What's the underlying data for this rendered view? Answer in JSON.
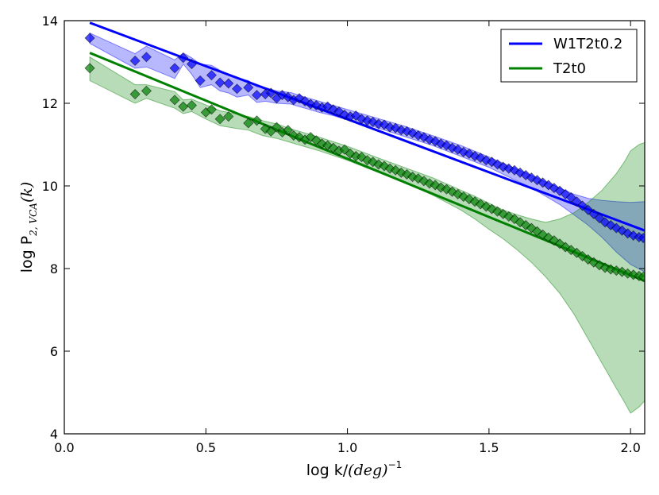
{
  "chart_data": {
    "type": "scatter",
    "title": "",
    "xlabel": "log k/",
    "xlabel_math": "(deg)",
    "xlabel_exp": "−1",
    "ylabel": "log P",
    "ylabel_sub": "2, VCA",
    "ylabel_tail": "(k)",
    "xlim": [
      0.0,
      2.05
    ],
    "ylim": [
      4,
      14
    ],
    "xticks": [
      0.0,
      0.5,
      1.0,
      1.5,
      2.0
    ],
    "xtick_labels": [
      "0.0",
      "0.5",
      "1.0",
      "1.5",
      "2.0"
    ],
    "yticks": [
      4,
      6,
      8,
      10,
      12,
      14
    ],
    "ytick_labels": [
      "4",
      "6",
      "8",
      "10",
      "12",
      "14"
    ],
    "grid": false,
    "legend_position": "top-right",
    "series": [
      {
        "name": "W1T2t0.2",
        "color": "#0000ff",
        "fill": "#0000ff",
        "fit": {
          "x": [
            0.09,
            2.05
          ],
          "y": [
            13.95,
            8.92
          ]
        },
        "points": {
          "x": [
            0.09,
            0.25,
            0.29,
            0.39,
            0.42,
            0.45,
            0.48,
            0.52,
            0.55,
            0.58,
            0.61,
            0.65,
            0.68,
            0.71,
            0.73,
            0.75,
            0.77,
            0.79,
            0.81,
            0.83,
            0.85,
            0.87,
            0.89,
            0.91,
            0.93,
            0.95,
            0.97,
            0.99,
            1.01,
            1.03,
            1.05,
            1.07,
            1.09,
            1.11,
            1.13,
            1.15,
            1.17,
            1.19,
            1.21,
            1.23,
            1.25,
            1.27,
            1.29,
            1.31,
            1.33,
            1.35,
            1.37,
            1.39,
            1.41,
            1.43,
            1.45,
            1.47,
            1.49,
            1.51,
            1.53,
            1.55,
            1.57,
            1.59,
            1.61,
            1.63,
            1.65,
            1.67,
            1.69,
            1.71,
            1.73,
            1.75,
            1.77,
            1.79,
            1.81,
            1.83,
            1.85,
            1.87,
            1.89,
            1.91,
            1.93,
            1.95,
            1.97,
            1.99,
            2.01,
            2.03,
            2.045
          ],
          "y": [
            13.58,
            13.03,
            13.12,
            12.85,
            13.1,
            12.95,
            12.55,
            12.68,
            12.5,
            12.48,
            12.35,
            12.38,
            12.2,
            12.22,
            12.25,
            12.12,
            12.2,
            12.15,
            12.08,
            12.12,
            12.05,
            11.98,
            11.95,
            11.9,
            11.92,
            11.85,
            11.8,
            11.72,
            11.68,
            11.7,
            11.62,
            11.58,
            11.55,
            11.5,
            11.48,
            11.42,
            11.4,
            11.35,
            11.32,
            11.28,
            11.22,
            11.18,
            11.12,
            11.08,
            11.02,
            10.98,
            10.92,
            10.88,
            10.82,
            10.78,
            10.72,
            10.68,
            10.62,
            10.58,
            10.52,
            10.46,
            10.42,
            10.38,
            10.32,
            10.26,
            10.2,
            10.14,
            10.08,
            10.02,
            9.95,
            9.88,
            9.8,
            9.72,
            9.62,
            9.52,
            9.42,
            9.32,
            9.22,
            9.12,
            9.05,
            8.98,
            8.92,
            8.85,
            8.8,
            8.76,
            8.74
          ]
        },
        "band": {
          "x": [
            0.09,
            0.25,
            0.29,
            0.39,
            0.42,
            0.45,
            0.48,
            0.52,
            0.55,
            0.58,
            0.61,
            0.65,
            0.68,
            0.71,
            0.75,
            0.8,
            0.85,
            0.9,
            0.95,
            1.0,
            1.1,
            1.2,
            1.3,
            1.4,
            1.5,
            1.55,
            1.6,
            1.65,
            1.7,
            1.75,
            1.8,
            1.85,
            1.9,
            1.95,
            2.0,
            2.05
          ],
          "upper": [
            13.7,
            13.2,
            13.38,
            13.05,
            13.22,
            13.1,
            12.95,
            12.92,
            12.8,
            12.7,
            12.6,
            12.55,
            12.4,
            12.38,
            12.3,
            12.26,
            12.15,
            12.05,
            11.95,
            11.85,
            11.65,
            11.45,
            11.22,
            10.98,
            10.7,
            10.55,
            10.4,
            10.25,
            10.1,
            9.95,
            9.8,
            9.7,
            9.65,
            9.62,
            9.6,
            9.62
          ],
          "lower": [
            13.45,
            12.85,
            12.88,
            12.6,
            12.95,
            12.7,
            12.38,
            12.45,
            12.3,
            12.25,
            12.15,
            12.2,
            12.02,
            12.05,
            12.0,
            11.98,
            11.88,
            11.78,
            11.7,
            11.6,
            11.42,
            11.2,
            10.98,
            10.72,
            10.45,
            10.28,
            10.12,
            9.95,
            9.75,
            9.55,
            9.3,
            9.05,
            8.75,
            8.4,
            8.1,
            7.92
          ]
        }
      },
      {
        "name": "T2t0",
        "color": "#008000",
        "fill": "#008000",
        "fit": {
          "x": [
            0.09,
            2.05
          ],
          "y": [
            13.22,
            7.7
          ]
        },
        "points": {
          "x": [
            0.09,
            0.25,
            0.29,
            0.39,
            0.42,
            0.45,
            0.5,
            0.52,
            0.55,
            0.58,
            0.65,
            0.68,
            0.71,
            0.73,
            0.75,
            0.77,
            0.79,
            0.81,
            0.83,
            0.85,
            0.87,
            0.89,
            0.91,
            0.93,
            0.95,
            0.97,
            0.99,
            1.01,
            1.03,
            1.05,
            1.07,
            1.09,
            1.11,
            1.13,
            1.15,
            1.17,
            1.19,
            1.21,
            1.23,
            1.25,
            1.27,
            1.29,
            1.31,
            1.33,
            1.35,
            1.37,
            1.39,
            1.41,
            1.43,
            1.45,
            1.47,
            1.49,
            1.51,
            1.53,
            1.55,
            1.57,
            1.59,
            1.61,
            1.63,
            1.65,
            1.67,
            1.69,
            1.71,
            1.73,
            1.75,
            1.77,
            1.79,
            1.81,
            1.83,
            1.85,
            1.87,
            1.89,
            1.91,
            1.93,
            1.95,
            1.97,
            1.99,
            2.01,
            2.03,
            2.045
          ],
          "y": [
            12.85,
            12.22,
            12.3,
            12.08,
            11.92,
            11.95,
            11.78,
            11.85,
            11.62,
            11.68,
            11.52,
            11.58,
            11.38,
            11.32,
            11.42,
            11.3,
            11.35,
            11.22,
            11.18,
            11.12,
            11.18,
            11.1,
            11.02,
            10.98,
            10.92,
            10.85,
            10.88,
            10.78,
            10.72,
            10.7,
            10.62,
            10.58,
            10.52,
            10.48,
            10.42,
            10.38,
            10.32,
            10.28,
            10.22,
            10.18,
            10.12,
            10.06,
            10.02,
            9.96,
            9.92,
            9.86,
            9.8,
            9.74,
            9.68,
            9.62,
            9.56,
            9.5,
            9.44,
            9.38,
            9.32,
            9.26,
            9.2,
            9.12,
            9.05,
            8.98,
            8.9,
            8.82,
            8.75,
            8.68,
            8.6,
            8.52,
            8.45,
            8.38,
            8.3,
            8.22,
            8.15,
            8.08,
            8.02,
            7.98,
            7.95,
            7.92,
            7.88,
            7.85,
            7.82,
            7.8
          ]
        },
        "band": {
          "x": [
            0.09,
            0.25,
            0.29,
            0.39,
            0.42,
            0.45,
            0.5,
            0.55,
            0.6,
            0.65,
            0.7,
            0.75,
            0.8,
            0.85,
            0.9,
            1.0,
            1.1,
            1.2,
            1.3,
            1.4,
            1.45,
            1.5,
            1.55,
            1.6,
            1.65,
            1.7,
            1.75,
            1.8,
            1.85,
            1.9,
            1.95,
            1.98,
            2.0,
            2.03,
            2.05
          ],
          "upper": [
            13.12,
            12.45,
            12.45,
            12.28,
            12.08,
            12.1,
            11.96,
            11.82,
            11.75,
            11.68,
            11.58,
            11.5,
            11.38,
            11.28,
            11.18,
            10.96,
            10.7,
            10.45,
            10.2,
            9.9,
            9.75,
            9.58,
            9.42,
            9.3,
            9.2,
            9.12,
            9.2,
            9.35,
            9.6,
            9.9,
            10.3,
            10.6,
            10.85,
            11.0,
            11.05
          ],
          "lower": [
            12.55,
            12.0,
            12.12,
            11.88,
            11.75,
            11.8,
            11.62,
            11.46,
            11.4,
            11.35,
            11.22,
            11.15,
            11.05,
            10.95,
            10.85,
            10.62,
            10.35,
            10.08,
            9.78,
            9.42,
            9.2,
            8.95,
            8.72,
            8.45,
            8.15,
            7.8,
            7.4,
            6.9,
            6.3,
            5.7,
            5.1,
            4.75,
            4.5,
            4.65,
            4.8
          ]
        }
      }
    ]
  }
}
